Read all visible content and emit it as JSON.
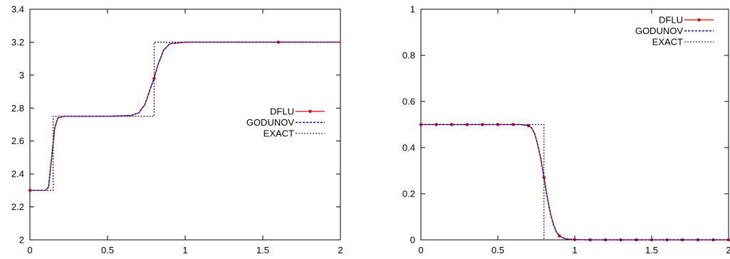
{
  "chart_data": [
    {
      "type": "line",
      "xlim": [
        0,
        2
      ],
      "ylim": [
        2,
        3.4
      ],
      "xticks": [
        "0",
        "0.5",
        "1",
        "1.5",
        "2"
      ],
      "yticks": [
        "2",
        "2.2",
        "2.4",
        "2.6",
        "2.8",
        "3",
        "3.2",
        "3.4"
      ],
      "legend_position": "right",
      "grid": false,
      "series": [
        {
          "name": "DFLU",
          "color": "#e00000",
          "x": [
            0,
            0.1,
            0.12,
            0.14,
            0.16,
            0.18,
            0.22,
            0.3,
            0.5,
            0.65,
            0.7,
            0.74,
            0.78,
            0.8,
            0.82,
            0.86,
            0.9,
            1.0,
            1.2,
            1.6,
            2.0
          ],
          "y": [
            2.3,
            2.3,
            2.32,
            2.5,
            2.68,
            2.74,
            2.75,
            2.75,
            2.75,
            2.755,
            2.77,
            2.82,
            2.93,
            2.98,
            3.05,
            3.15,
            3.19,
            3.2,
            3.2,
            3.2,
            3.2
          ],
          "markers_x": [
            0,
            0.8,
            1.6
          ]
        },
        {
          "name": "GODUNOV",
          "color": "#0000cc",
          "x": [
            0,
            0.1,
            0.12,
            0.14,
            0.16,
            0.18,
            0.22,
            0.3,
            0.5,
            0.65,
            0.7,
            0.74,
            0.78,
            0.8,
            0.82,
            0.86,
            0.9,
            1.0,
            1.2,
            1.6,
            2.0
          ],
          "y": [
            2.3,
            2.3,
            2.32,
            2.5,
            2.68,
            2.74,
            2.75,
            2.75,
            2.75,
            2.755,
            2.77,
            2.82,
            2.93,
            2.98,
            3.05,
            3.15,
            3.19,
            3.2,
            3.2,
            3.2,
            3.2
          ]
        },
        {
          "name": "EXACT",
          "color": "#000000",
          "x": [
            0,
            0.15,
            0.15,
            0.8,
            0.8,
            2.0
          ],
          "y": [
            2.3,
            2.3,
            2.75,
            2.75,
            3.2,
            3.2
          ]
        }
      ]
    },
    {
      "type": "line",
      "xlim": [
        0,
        2
      ],
      "ylim": [
        0,
        1
      ],
      "xticks": [
        "0",
        "0.5",
        "1",
        "1.5",
        "2"
      ],
      "yticks": [
        "0",
        "0.2",
        "0.4",
        "0.6",
        "0.8",
        "1"
      ],
      "legend_position": "top-right",
      "grid": false,
      "series": [
        {
          "name": "DFLU",
          "color": "#e00000",
          "x": [
            0,
            0.1,
            0.2,
            0.3,
            0.4,
            0.5,
            0.6,
            0.65,
            0.7,
            0.72,
            0.74,
            0.76,
            0.78,
            0.8,
            0.82,
            0.84,
            0.86,
            0.88,
            0.9,
            0.94,
            1.0,
            1.1,
            1.5,
            2.0
          ],
          "y": [
            0.5,
            0.5,
            0.5,
            0.5,
            0.5,
            0.5,
            0.5,
            0.5,
            0.495,
            0.485,
            0.46,
            0.41,
            0.35,
            0.27,
            0.19,
            0.12,
            0.07,
            0.035,
            0.017,
            0.004,
            0.001,
            0,
            0,
            0
          ],
          "markers_x": [
            0,
            0.1,
            0.2,
            0.3,
            0.4,
            0.5,
            0.6,
            0.7,
            0.8,
            0.9,
            1.0,
            1.1,
            1.2,
            1.3,
            1.4,
            1.5,
            1.6,
            1.7,
            1.8,
            1.9,
            2.0
          ]
        },
        {
          "name": "GODUNOV",
          "color": "#0000cc",
          "x": [
            0,
            0.1,
            0.2,
            0.3,
            0.4,
            0.5,
            0.6,
            0.65,
            0.7,
            0.72,
            0.74,
            0.76,
            0.78,
            0.8,
            0.82,
            0.84,
            0.86,
            0.88,
            0.9,
            0.94,
            1.0,
            1.1,
            1.5,
            2.0
          ],
          "y": [
            0.5,
            0.5,
            0.5,
            0.5,
            0.5,
            0.5,
            0.5,
            0.5,
            0.495,
            0.485,
            0.46,
            0.41,
            0.35,
            0.27,
            0.19,
            0.12,
            0.07,
            0.035,
            0.017,
            0.004,
            0.001,
            0,
            0,
            0
          ]
        },
        {
          "name": "EXACT",
          "color": "#000000",
          "x": [
            0,
            0.8,
            0.8,
            2.0
          ],
          "y": [
            0.5,
            0.5,
            0,
            0
          ]
        }
      ]
    }
  ]
}
